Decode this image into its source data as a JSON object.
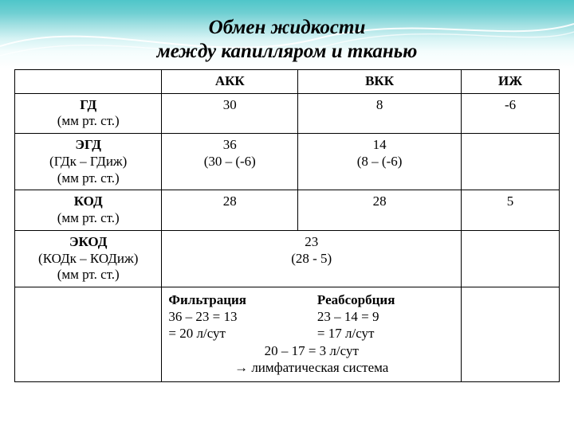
{
  "title": {
    "line1": "Обмен жидкости",
    "line2": "между капилляром и тканью",
    "fontsize": 25,
    "italic": true,
    "bold": true
  },
  "table": {
    "border_color": "#000000",
    "cell_fontsize": 17,
    "col_widths_pct": [
      27,
      25,
      30,
      18
    ],
    "columns": [
      "",
      "АКК",
      "ВКК",
      "ИЖ"
    ],
    "rows": [
      {
        "label_main": "ГД",
        "label_sub": "(мм рт. ст.)",
        "akk": "30",
        "vkk": "8",
        "izh": "-6"
      },
      {
        "label_main": "ЭГД",
        "label_sub": "(ГДк – ГДиж)\n(мм рт. ст.)",
        "akk": "36\n(30 – (-6)",
        "vkk": "14\n(8 – (-6)",
        "izh": ""
      },
      {
        "label_main": "КОД",
        "label_sub": "(мм рт. ст.)",
        "akk": "28",
        "vkk": "28",
        "izh": "5"
      },
      {
        "label_main": "ЭКОД",
        "label_sub": "(КОДк – КОДиж)\n(мм рт. ст.)",
        "merged_center": "23\n(28 - 5)",
        "izh": ""
      }
    ],
    "calc": {
      "left_title": "Фильтрация",
      "left_l1": "36 – 23 = 13",
      "left_l2": "= 20 л/сут",
      "right_title": "Реабсорбция",
      "right_l1": "23 – 14 = 9",
      "right_l2": "= 17 л/сут",
      "bottom_l1": "20 – 17 = 3 л/сут",
      "bottom_l2": "→ лимфатическая система"
    }
  }
}
